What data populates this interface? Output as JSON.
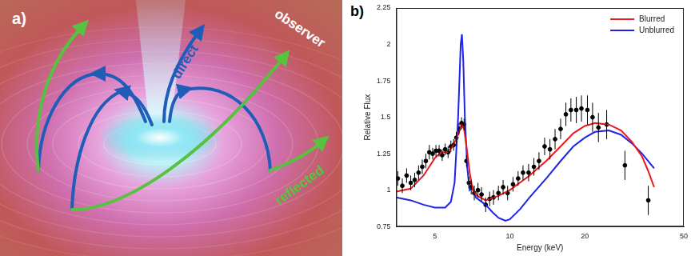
{
  "diagram": {
    "panel_label": "a)",
    "labels": {
      "direct": "direct",
      "observer": "observer",
      "reflected": "reflected"
    }
  },
  "chart_data": {
    "type": "line",
    "panel_label": "b)",
    "x_label": "Energy (keV)",
    "y_label": "Relative Flux",
    "log": "x",
    "grid": false,
    "legend": "upper right",
    "xlim": [
      3.5,
      50
    ],
    "xticks": [
      5,
      10,
      20,
      50
    ],
    "ylim": [
      0.75,
      2.25
    ],
    "yticks": [
      0.75,
      1,
      1.25,
      1.5,
      1.75,
      2,
      2.25
    ],
    "series": [
      {
        "name": "Blurred",
        "color": "#e8191c",
        "line_style": "solid",
        "x": [
          3.5,
          4,
          4.5,
          5,
          5.3,
          5.6,
          5.9,
          6.2,
          6.4,
          6.55,
          6.7,
          6.9,
          7.1,
          7.4,
          8,
          9,
          10,
          12,
          14,
          16,
          18,
          20,
          22,
          25,
          28,
          31,
          34,
          36,
          38
        ],
        "values": [
          0.99,
          1.01,
          1.1,
          1.22,
          1.26,
          1.26,
          1.3,
          1.38,
          1.45,
          1.42,
          1.3,
          1.12,
          1.0,
          0.96,
          0.93,
          0.96,
          1.0,
          1.1,
          1.2,
          1.3,
          1.39,
          1.44,
          1.46,
          1.45,
          1.41,
          1.33,
          1.23,
          1.13,
          1.02
        ]
      },
      {
        "name": "Unblurred",
        "color": "#1d24e6",
        "line_style": "solid",
        "x": [
          3.5,
          4,
          4.5,
          5,
          5.5,
          5.8,
          6.0,
          6.2,
          6.35,
          6.42,
          6.5,
          6.6,
          6.75,
          6.9,
          7.1,
          7.3,
          8,
          8.5,
          9,
          9.6,
          10,
          11,
          12,
          14,
          16,
          18,
          20,
          22,
          25,
          28,
          31,
          34,
          38
        ],
        "values": [
          0.95,
          0.93,
          0.9,
          0.88,
          0.88,
          0.92,
          1.05,
          1.5,
          2.0,
          2.07,
          1.9,
          1.5,
          1.15,
          1.0,
          1.02,
          0.95,
          0.9,
          0.85,
          0.81,
          0.79,
          0.8,
          0.87,
          0.95,
          1.08,
          1.2,
          1.3,
          1.36,
          1.4,
          1.41,
          1.38,
          1.32,
          1.25,
          1.15
        ]
      },
      {
        "type": "scatter",
        "color": "#000000",
        "marker": "circle",
        "x": [
          3.55,
          3.7,
          3.85,
          4.0,
          4.15,
          4.3,
          4.45,
          4.6,
          4.75,
          4.9,
          5.05,
          5.2,
          5.35,
          5.5,
          5.65,
          5.8,
          5.95,
          6.1,
          6.25,
          6.4,
          6.55,
          6.7,
          6.85,
          7.0,
          7.2,
          7.45,
          7.7,
          8.0,
          8.3,
          8.6,
          9.0,
          9.4,
          9.8,
          10.3,
          10.8,
          11.3,
          11.9,
          12.5,
          13.1,
          13.8,
          14.5,
          15.2,
          16,
          16.8,
          17.6,
          18.5,
          19.4,
          20.5,
          21.5,
          22.7,
          24.5,
          29,
          36
        ],
        "values": [
          1.08,
          1.03,
          1.1,
          1.05,
          1.07,
          1.12,
          1.16,
          1.2,
          1.26,
          1.25,
          1.27,
          1.27,
          1.24,
          1.28,
          1.26,
          1.3,
          1.31,
          1.36,
          1.42,
          1.46,
          1.45,
          1.2,
          1.05,
          1.02,
          0.98,
          1.0,
          0.97,
          0.9,
          0.94,
          0.95,
          0.98,
          1.02,
          0.98,
          1.04,
          1.08,
          1.12,
          1.12,
          1.16,
          1.2,
          1.3,
          1.28,
          1.35,
          1.42,
          1.52,
          1.55,
          1.55,
          1.56,
          1.55,
          1.5,
          1.43,
          1.45,
          1.17,
          0.93
        ],
        "y_error": [
          0.05,
          0.05,
          0.05,
          0.05,
          0.05,
          0.05,
          0.05,
          0.05,
          0.05,
          0.04,
          0.04,
          0.04,
          0.04,
          0.04,
          0.04,
          0.04,
          0.04,
          0.04,
          0.04,
          0.04,
          0.04,
          0.04,
          0.04,
          0.05,
          0.05,
          0.05,
          0.05,
          0.05,
          0.05,
          0.05,
          0.05,
          0.05,
          0.05,
          0.05,
          0.05,
          0.05,
          0.06,
          0.06,
          0.06,
          0.06,
          0.07,
          0.07,
          0.07,
          0.08,
          0.08,
          0.09,
          0.09,
          0.1,
          0.1,
          0.1,
          0.1,
          0.1,
          0.1
        ]
      }
    ]
  }
}
